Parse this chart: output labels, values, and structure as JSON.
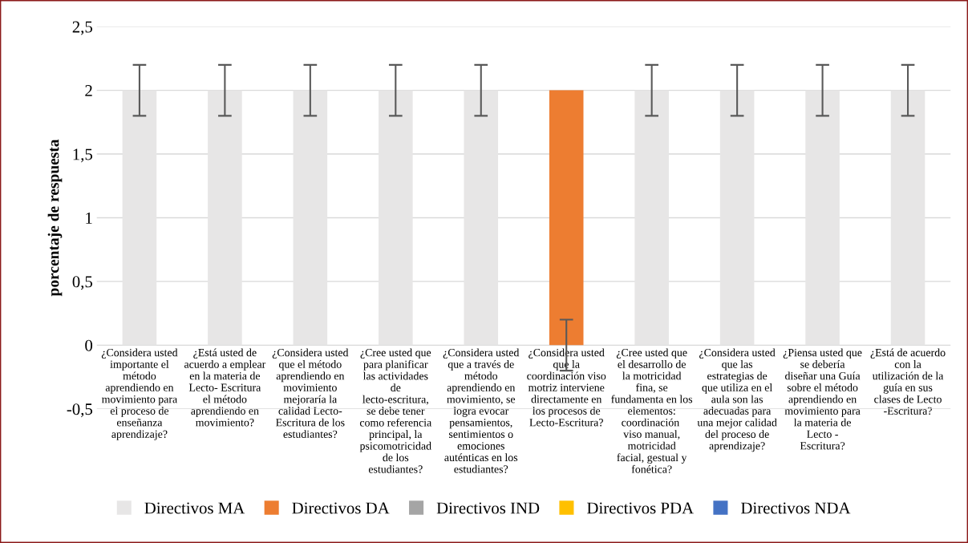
{
  "chart_data": {
    "type": "bar",
    "ylabel": "porcentaje de respuesta",
    "categories": [
      "¿Considera usted importante el método aprendiendo en movimiento para el proceso de enseñanza aprendizaje?",
      "¿Está usted de acuerdo a emplear en la materia de Lecto- Escritura el método aprendiendo en movimiento?",
      "¿Considera usted que el método aprendiendo en movimiento mejoraría la calidad Lecto- Escritura de los estudiantes?",
      "¿Cree usted que para planificar las actividades de lecto-escritura, se debe tener como referencia principal, la psicomotricidad de los estudiantes?",
      "¿Considera usted que a través de método aprendiendo en movimiento, se logra evocar pensamientos, sentimientos o emociones auténticas en los estudiantes?",
      "¿Considera usted que la coordinación viso motriz interviene directamente en los procesos de Lecto-Escritura?",
      "¿Cree usted que el desarrollo de la motricidad fina, se fundamenta en los elementos: coordinación  viso manual, motricidad facial, gestual y fonética?",
      "¿Considera usted que las estrategias de que utiliza en el aula son las adecuadas para una mejor calidad del proceso de aprendizaje?",
      "¿Piensa usted que se debería diseñar una Guía sobre el método aprendiendo en movimiento para la materia de Lecto - Escritura?",
      "¿Está de acuerdo con la utilización de la guía en sus clases de Lecto -Escritura?"
    ],
    "series": [
      {
        "name": "Directivos MA",
        "color": "#e7e6e6",
        "values": [
          2,
          2,
          2,
          2,
          2,
          0,
          2,
          2,
          2,
          2
        ],
        "errors": [
          0.2,
          0.2,
          0.2,
          0.2,
          0.2,
          0.2,
          0.2,
          0.2,
          0.2,
          0.2
        ]
      },
      {
        "name": "Directivos DA",
        "color": "#ed7d31",
        "values": [
          0,
          0,
          0,
          0,
          0,
          2,
          0,
          0,
          0,
          0
        ]
      },
      {
        "name": "Directivos IND",
        "color": "#a5a5a5",
        "values": [
          0,
          0,
          0,
          0,
          0,
          0,
          0,
          0,
          0,
          0
        ]
      },
      {
        "name": "Directivos PDA",
        "color": "#ffc000",
        "values": [
          0,
          0,
          0,
          0,
          0,
          0,
          0,
          0,
          0,
          0
        ]
      },
      {
        "name": "Directivos NDA",
        "color": "#4472c4",
        "values": [
          0,
          0,
          0,
          0,
          0,
          0,
          0,
          0,
          0,
          0
        ]
      }
    ],
    "ylim": [
      -0.5,
      2.5
    ],
    "yticks": [
      {
        "value": -0.5,
        "label": "-0,5"
      },
      0,
      {
        "value": 0.5,
        "label": "0,5"
      },
      1,
      {
        "value": 1.5,
        "label": "1,5"
      },
      2,
      {
        "value": 2.5,
        "label": "2,5"
      }
    ],
    "grid": "y",
    "legend": "bottom"
  }
}
